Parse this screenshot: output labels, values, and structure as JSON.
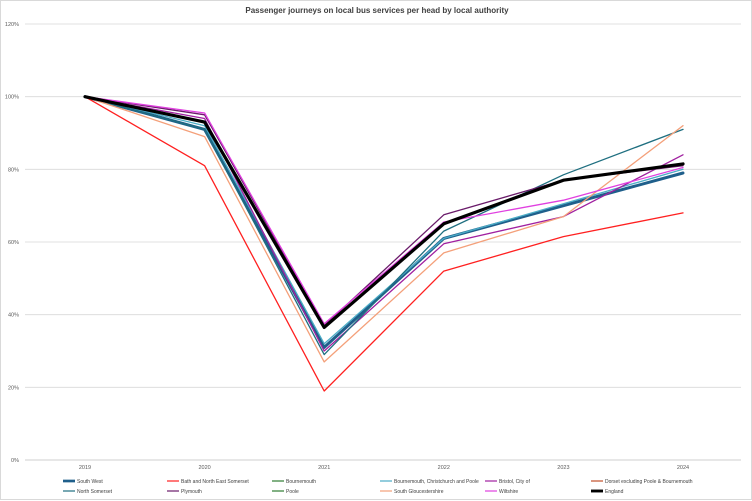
{
  "chart_data": {
    "type": "line",
    "title": "Passenger journeys on local bus services per head by local authority",
    "xlabel": "",
    "ylabel": "",
    "categories": [
      "2019",
      "2020",
      "2021",
      "2022",
      "2023",
      "2024"
    ],
    "y_ticks": [
      "0%",
      "20%",
      "40%",
      "60%",
      "80%",
      "100%",
      "120%"
    ],
    "ylim": [
      0,
      120
    ],
    "grid": "horizontal",
    "legend_position": "bottom",
    "series": [
      {
        "name": "South West",
        "color": "#1f5f8b",
        "width": 3,
        "values": [
          100,
          91,
          31,
          61,
          70,
          79
        ]
      },
      {
        "name": "Bath and North East Somerset",
        "color": "#ff2020",
        "width": 1.3,
        "values": [
          100,
          81,
          19,
          52,
          61.5,
          68
        ]
      },
      {
        "name": "Bournemouth",
        "color": "#2e7d32",
        "width": 1.3,
        "values": [
          null,
          null,
          null,
          null,
          null,
          null
        ]
      },
      {
        "name": "Bournemouth, Christchurch and Poole",
        "color": "#4bacc6",
        "width": 1.3,
        "values": [
          100,
          92,
          32,
          61,
          70.5,
          80
        ]
      },
      {
        "name": "Bristol, City of",
        "color": "#a020a0",
        "width": 1.3,
        "values": [
          100,
          94,
          30,
          59.5,
          67,
          84
        ]
      },
      {
        "name": "Dorset excluding Poole & Bournemouth",
        "color": "#c0502a",
        "width": 1.3,
        "values": [
          null,
          null,
          null,
          null,
          null,
          null
        ]
      },
      {
        "name": "North Somerset",
        "color": "#1f6f80",
        "width": 1.3,
        "values": [
          100,
          91,
          29,
          63,
          78.5,
          91
        ]
      },
      {
        "name": "Plymouth",
        "color": "#6a1b6a",
        "width": 1.3,
        "values": [
          100,
          95,
          37,
          67.5,
          77,
          81
        ]
      },
      {
        "name": "Poole",
        "color": "#2e7d32",
        "width": 1.3,
        "values": [
          null,
          null,
          null,
          null,
          null,
          null
        ]
      },
      {
        "name": "South Gloucestershire",
        "color": "#f4a07a",
        "width": 1.3,
        "values": [
          100,
          89,
          27,
          57,
          67,
          92
        ]
      },
      {
        "name": "Wiltshire",
        "color": "#e040e0",
        "width": 1.3,
        "values": [
          100,
          95.5,
          37.5,
          65.5,
          71.5,
          80.5
        ]
      },
      {
        "name": "England",
        "color": "#000000",
        "width": 3.2,
        "values": [
          100,
          93,
          36.5,
          65,
          77,
          81.5
        ]
      }
    ]
  }
}
